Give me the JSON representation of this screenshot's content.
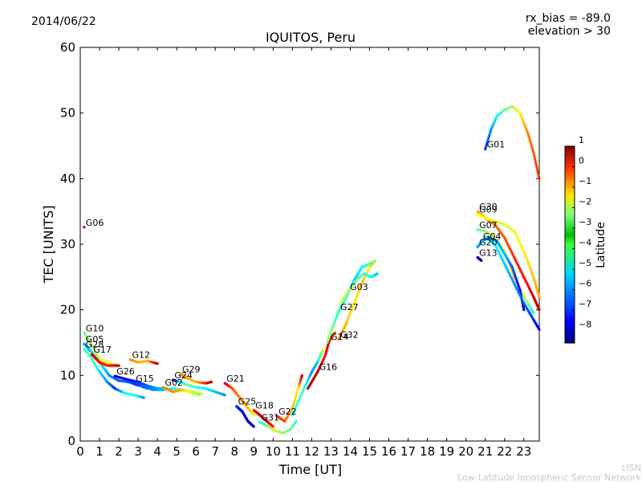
{
  "header": {
    "date": "2014/06/22",
    "rx_bias": "rx_bias = -89.0",
    "elevation": "elevation > 30"
  },
  "footer": {
    "brand": "LISN",
    "network": "Low-Latitude Ionospheric Sensor Network"
  },
  "colorbar": {
    "label": "Latitude",
    "ticks": [
      1,
      0,
      -1,
      -2,
      -3,
      -4,
      -5,
      -6,
      -7,
      -8
    ],
    "tick_labels": [
      "1",
      "0",
      "−1",
      "−2",
      "−3",
      "−4",
      "−5",
      "−6",
      "−7",
      "−8"
    ],
    "range": [
      -8.6,
      1.0
    ]
  },
  "chart_data": {
    "type": "scatter",
    "title": "IQUITOS, Peru",
    "xlabel": "Time [UT]",
    "ylabel": "TEC [UNITS]",
    "xlim": [
      0,
      23.8
    ],
    "ylim": [
      0,
      60
    ],
    "xticks": [
      0,
      1,
      2,
      3,
      4,
      5,
      6,
      7,
      8,
      9,
      10,
      11,
      12,
      13,
      14,
      15,
      16,
      17,
      18,
      19,
      20,
      21,
      22,
      23
    ],
    "yticks": [
      0,
      10,
      20,
      30,
      40,
      50,
      60
    ],
    "series": [
      {
        "name": "G06",
        "label_at": [
          0.2,
          32.6
        ],
        "points": [
          [
            0.2,
            32.6,
            0.3
          ]
        ]
      },
      {
        "name": "G10",
        "label_at": [
          0.2,
          16.5
        ],
        "points": [
          [
            0.2,
            16.5,
            -4
          ],
          [
            0.6,
            14.5,
            -3.5
          ],
          [
            1.0,
            12.5,
            -3
          ],
          [
            1.5,
            11.8,
            -2.5
          ],
          [
            2.0,
            11.5,
            -2.2
          ]
        ]
      },
      {
        "name": "G05",
        "label_at": [
          0.2,
          14.8
        ],
        "points": [
          [
            0.2,
            14.8,
            -6
          ],
          [
            0.6,
            13.5,
            -5.5
          ],
          [
            1.0,
            12.0,
            -5
          ],
          [
            1.5,
            10.0,
            -6
          ],
          [
            2.0,
            9.2,
            -6.5
          ],
          [
            2.5,
            9.0,
            -6.5
          ],
          [
            3.0,
            8.5,
            -7
          ]
        ]
      },
      {
        "name": "G28",
        "label_at": [
          0.2,
          14.0
        ],
        "points": [
          [
            0.2,
            14.0,
            -4.5
          ],
          [
            0.5,
            13.0,
            -4
          ],
          [
            0.9,
            11.0,
            -5
          ],
          [
            1.4,
            9.0,
            -6
          ],
          [
            1.8,
            8.0,
            -7
          ],
          [
            2.3,
            7.3,
            -5
          ],
          [
            2.8,
            7.0,
            -4.5
          ],
          [
            3.3,
            6.6,
            -6
          ]
        ]
      },
      {
        "name": "G17",
        "label_at": [
          0.6,
          13.2
        ],
        "points": [
          [
            0.6,
            13.2,
            0.3
          ],
          [
            1.0,
            12.0,
            -0.3
          ],
          [
            1.4,
            11.5,
            -0.5
          ],
          [
            2.0,
            11.5,
            0.5
          ]
        ]
      },
      {
        "name": "G26",
        "label_at": [
          1.8,
          9.9
        ],
        "points": [
          [
            1.8,
            9.9,
            -8
          ],
          [
            2.4,
            9.4,
            -7.5
          ],
          [
            3.0,
            9.0,
            -7
          ],
          [
            3.5,
            8.4,
            -6.5
          ],
          [
            4.0,
            8.0,
            -6
          ],
          [
            4.5,
            8.0,
            -5.5
          ]
        ]
      },
      {
        "name": "G12",
        "label_at": [
          2.6,
          12.4
        ],
        "points": [
          [
            2.6,
            12.4,
            -1.5
          ],
          [
            3.0,
            12.0,
            -1.8
          ],
          [
            3.5,
            12.2,
            -2
          ],
          [
            4.0,
            11.8,
            0.5
          ]
        ]
      },
      {
        "name": "G15",
        "label_at": [
          2.8,
          8.8
        ],
        "points": [
          [
            2.8,
            8.8,
            -7
          ],
          [
            3.3,
            8.2,
            -6.5
          ],
          [
            3.8,
            7.8,
            -6
          ],
          [
            4.3,
            7.8,
            -5.5
          ],
          [
            4.8,
            8.0,
            -5
          ],
          [
            5.3,
            7.8,
            -4
          ],
          [
            5.8,
            7.5,
            -3.5
          ],
          [
            6.3,
            7.2,
            -3
          ]
        ]
      },
      {
        "name": "G02",
        "label_at": [
          4.3,
          8.2
        ],
        "points": [
          [
            4.3,
            8.2,
            -1.5
          ],
          [
            4.8,
            7.5,
            -1.5
          ],
          [
            5.3,
            7.8,
            -2
          ],
          [
            5.8,
            7.3,
            -3
          ],
          [
            6.2,
            7.0,
            -3.5
          ]
        ]
      },
      {
        "name": "G24",
        "label_at": [
          4.8,
          9.3
        ],
        "points": [
          [
            4.8,
            9.3,
            -8
          ],
          [
            5.2,
            9.0,
            -5
          ],
          [
            5.6,
            8.5,
            -4
          ],
          [
            6.0,
            8.2,
            -4.5
          ],
          [
            6.5,
            8.0,
            -5
          ],
          [
            7.0,
            7.5,
            -5.5
          ],
          [
            7.5,
            7.0,
            -6
          ]
        ]
      },
      {
        "name": "G29",
        "label_at": [
          5.2,
          10.2
        ],
        "points": [
          [
            5.2,
            10.2,
            -1.5
          ],
          [
            5.6,
            9.5,
            -1.8
          ],
          [
            6.0,
            9.0,
            -2
          ],
          [
            6.5,
            8.8,
            -0.5
          ],
          [
            6.8,
            9.0,
            0.5
          ]
        ]
      },
      {
        "name": "G21",
        "label_at": [
          7.5,
          8.8
        ],
        "points": [
          [
            7.5,
            8.8,
            0.3
          ],
          [
            7.9,
            8.0,
            -1
          ],
          [
            8.3,
            6.5,
            -1.5
          ],
          [
            8.7,
            5.0,
            -2
          ],
          [
            9.0,
            4.0,
            -2.5
          ]
        ]
      },
      {
        "name": "G25",
        "label_at": [
          8.1,
          5.3
        ],
        "points": [
          [
            8.1,
            5.3,
            -7
          ],
          [
            8.4,
            4.5,
            -7.5
          ],
          [
            8.7,
            3.0,
            -8
          ],
          [
            9.0,
            2.2,
            -8
          ]
        ]
      },
      {
        "name": "G18",
        "label_at": [
          9.0,
          4.7
        ],
        "points": [
          [
            9.0,
            4.7,
            -0.5
          ],
          [
            9.3,
            4.0,
            0.5
          ],
          [
            9.6,
            3.2,
            0.3
          ],
          [
            10.0,
            2.2,
            -0.5
          ]
        ]
      },
      {
        "name": "G31",
        "label_at": [
          9.3,
          2.9
        ],
        "points": [
          [
            9.3,
            2.9,
            -5
          ],
          [
            9.7,
            2.3,
            -4
          ],
          [
            10.1,
            1.6,
            -3
          ],
          [
            10.5,
            1.2,
            -3.5
          ],
          [
            10.9,
            1.8,
            -4
          ],
          [
            11.2,
            3.0,
            -4.5
          ]
        ]
      },
      {
        "name": "G22",
        "label_at": [
          10.2,
          3.8
        ],
        "points": [
          [
            10.2,
            3.8,
            -0.5
          ],
          [
            10.6,
            3.0,
            -1
          ],
          [
            11.0,
            5.0,
            -2
          ],
          [
            11.3,
            8.0,
            -2.5
          ],
          [
            11.5,
            10.0,
            0.3
          ]
        ]
      },
      {
        "name": "G16",
        "label_at": [
          12.3,
          10.6
        ],
        "points": [
          [
            11.0,
            4.0,
            -5
          ],
          [
            11.6,
            8.0,
            -4.5
          ],
          [
            12.0,
            10.5,
            -6
          ],
          [
            12.3,
            12.0,
            -5.5
          ],
          [
            12.6,
            14.0,
            -3
          ]
        ]
      },
      {
        "name": "G14",
        "label_at": [
          12.9,
          15.2
        ],
        "points": [
          [
            11.8,
            8.0,
            0.5
          ],
          [
            12.3,
            10.5,
            0.3
          ],
          [
            12.7,
            13.0,
            -0.5
          ],
          [
            12.9,
            15.2,
            0.3
          ],
          [
            13.2,
            16.5,
            -1
          ]
        ]
      },
      {
        "name": "G32",
        "label_at": [
          13.4,
          15.5
        ],
        "points": [
          [
            13.4,
            15.5,
            -1.5
          ],
          [
            13.8,
            18.0,
            -2
          ],
          [
            14.2,
            21.0,
            -2.5
          ],
          [
            14.6,
            24.0,
            -2
          ],
          [
            15.0,
            26.5,
            -2.5
          ],
          [
            15.3,
            27.5,
            -2
          ]
        ]
      },
      {
        "name": "G27",
        "label_at": [
          13.4,
          19.7
        ],
        "points": [
          [
            12.8,
            15.0,
            -3.5
          ],
          [
            13.1,
            17.5,
            -4
          ],
          [
            13.4,
            19.7,
            -4.5
          ],
          [
            13.8,
            22.0,
            -5
          ],
          [
            14.2,
            24.5,
            -5.5
          ],
          [
            14.6,
            26.5,
            -5
          ],
          [
            15.0,
            27.0,
            -4.5
          ],
          [
            15.3,
            27.5,
            -3.5
          ]
        ]
      },
      {
        "name": "G03",
        "label_at": [
          13.9,
          22.8
        ],
        "points": [
          [
            13.5,
            21.0,
            -3
          ],
          [
            13.9,
            22.8,
            -3.5
          ],
          [
            14.3,
            24.5,
            -4
          ],
          [
            14.7,
            25.5,
            -4.5
          ],
          [
            15.1,
            25.0,
            -5
          ],
          [
            15.4,
            25.5,
            -5.5
          ]
        ]
      },
      {
        "name": "G30",
        "label_at": [
          20.6,
          35.0
        ],
        "points": [
          [
            20.6,
            35.0,
            -1.8
          ],
          [
            21.0,
            34.0,
            -1.5
          ],
          [
            21.5,
            33.0,
            -1.2
          ],
          [
            22.0,
            31.0,
            -1
          ],
          [
            22.5,
            28.0,
            -0.5
          ],
          [
            23.0,
            25.0,
            -0.3
          ],
          [
            23.5,
            22.0,
            0.2
          ],
          [
            23.8,
            20.0,
            0.5
          ]
        ]
      },
      {
        "name": "G09",
        "label_at": [
          20.6,
          34.6
        ],
        "points": [
          [
            20.6,
            34.6,
            -2.5
          ],
          [
            21.0,
            34.0,
            -2.8
          ],
          [
            21.5,
            33.5,
            -3
          ],
          [
            22.0,
            33.0,
            -3
          ],
          [
            22.5,
            32.0,
            -2.8
          ],
          [
            23.0,
            29.0,
            -2.5
          ],
          [
            23.5,
            25.0,
            -2
          ],
          [
            23.8,
            22.0,
            -1.8
          ]
        ]
      },
      {
        "name": "G07",
        "label_at": [
          20.6,
          32.2
        ],
        "points": [
          [
            20.6,
            32.2,
            -4.5
          ],
          [
            21.0,
            32.0,
            -3.5
          ],
          [
            21.5,
            31.0,
            -3
          ],
          [
            22.0,
            29.0,
            -2.5
          ],
          [
            22.5,
            25.0,
            -2
          ],
          [
            23.0,
            22.0,
            -3
          ],
          [
            23.5,
            19.5,
            -5
          ]
        ]
      },
      {
        "name": "G04",
        "label_at": [
          20.8,
          30.5
        ],
        "points": [
          [
            20.8,
            30.5,
            -7
          ],
          [
            21.2,
            31.0,
            -6.5
          ],
          [
            21.6,
            30.5,
            -6
          ],
          [
            22.0,
            28.5,
            -5.5
          ],
          [
            22.4,
            26.5,
            -6.5
          ],
          [
            22.8,
            23.0,
            -7.5
          ],
          [
            23.0,
            20.0,
            -8
          ]
        ]
      },
      {
        "name": "G20",
        "label_at": [
          20.6,
          29.6
        ],
        "points": [
          [
            20.6,
            29.6,
            -6
          ],
          [
            21.0,
            31.0,
            -5.5
          ],
          [
            21.5,
            30.0,
            -5
          ],
          [
            22.0,
            27.0,
            -5.5
          ],
          [
            22.5,
            24.0,
            -6
          ],
          [
            23.0,
            21.0,
            -6.5
          ],
          [
            23.5,
            18.5,
            -7
          ],
          [
            23.8,
            17.0,
            -7.5
          ]
        ]
      },
      {
        "name": "G13",
        "label_at": [
          20.6,
          28.0
        ],
        "points": [
          [
            20.6,
            28.0,
            -8
          ],
          [
            20.8,
            27.5,
            -8.2
          ]
        ]
      },
      {
        "name": "G01",
        "label_at": [
          21.0,
          44.5
        ],
        "points": [
          [
            21.0,
            44.5,
            -7
          ],
          [
            21.3,
            47.5,
            -6
          ],
          [
            21.6,
            49.5,
            -5
          ],
          [
            22.0,
            50.5,
            -4
          ],
          [
            22.4,
            51.0,
            -3.5
          ],
          [
            22.8,
            50.0,
            -2.5
          ],
          [
            23.2,
            47.0,
            -1.5
          ],
          [
            23.5,
            44.0,
            -1
          ],
          [
            23.8,
            40.0,
            -0.5
          ]
        ]
      }
    ]
  }
}
